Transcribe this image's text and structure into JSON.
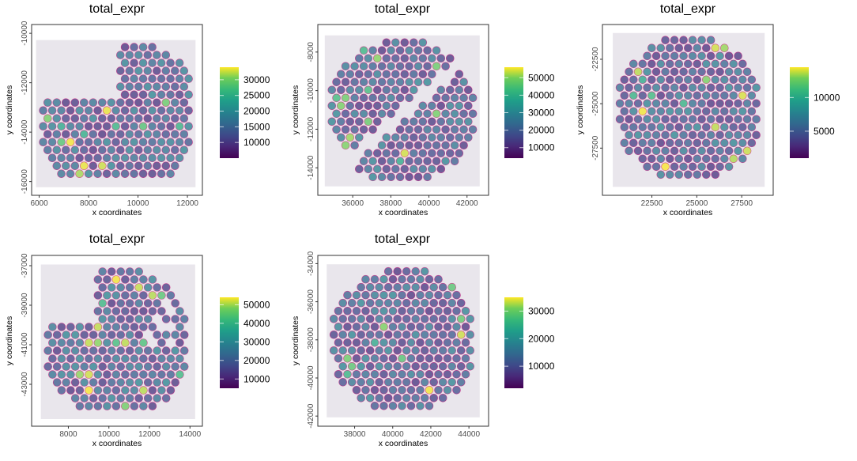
{
  "figure": {
    "description": "Spatial transcriptomics spot plots (Giotto-style) of total_expr overlaid on H&E tissue images, 5 samples",
    "background": "#ffffff",
    "panel_bg": "#e9e6ec",
    "tissue_color": "#d0157a"
  },
  "chart_data": [
    {
      "type": "scatter",
      "title": "total_expr",
      "xlabel": "x coordinates",
      "ylabel": "y coordinates",
      "xlim": [
        5950,
        12350
      ],
      "ylim": [
        -16300,
        -9900
      ],
      "xticks": [
        6000,
        8000,
        10000,
        12000
      ],
      "yticks": [
        -16000,
        -14000,
        -12000,
        -10000
      ],
      "xtick_labels": [
        "6000",
        "8000",
        "10000",
        "12000"
      ],
      "ytick_labels": [
        "-16000",
        "-14000",
        "-12000",
        "-10000"
      ],
      "color_scale": "viridis",
      "legend": {
        "position": "right",
        "range": [
          5000,
          34000
        ],
        "breaks": [
          10000,
          15000,
          20000,
          25000,
          30000
        ],
        "labels": [
          "10000",
          "15000",
          "20000",
          "25000",
          "30000"
        ]
      },
      "grid": false,
      "tissue_shape": "irregular",
      "tissue_extent": {
        "x": [
          6000,
          12200
        ],
        "y": [
          -16100,
          -10400
        ]
      }
    },
    {
      "type": "scatter",
      "title": "total_expr",
      "xlabel": "x coordinates",
      "ylabel": "y coordinates",
      "xlim": [
        34500,
        42800
      ],
      "ylim": [
        -15100,
        -6900
      ],
      "xticks": [
        36000,
        38000,
        40000,
        42000
      ],
      "yticks": [
        -14000,
        -12000,
        -10000,
        -8000
      ],
      "xtick_labels": [
        "36000",
        "38000",
        "40000",
        "42000"
      ],
      "ytick_labels": [
        "-14000",
        "-12000",
        "-10000",
        "-8000"
      ],
      "color_scale": "viridis",
      "legend": {
        "position": "right",
        "range": [
          4000,
          56000
        ],
        "breaks": [
          10000,
          20000,
          30000,
          40000,
          50000
        ],
        "labels": [
          "10000",
          "20000",
          "30000",
          "40000",
          "50000"
        ]
      },
      "grid": false,
      "tissue_shape": "round-split",
      "tissue_extent": {
        "x": [
          34700,
          42500
        ],
        "y": [
          -14800,
          -7300
        ]
      }
    },
    {
      "type": "scatter",
      "title": "total_expr",
      "xlabel": "x coordinates",
      "ylabel": "y coordinates",
      "xlim": [
        20100,
        28900
      ],
      "ylim": [
        -29800,
        -20900
      ],
      "xticks": [
        22500,
        25000,
        27500
      ],
      "yticks": [
        -27500,
        -25000,
        -22500
      ],
      "xtick_labels": [
        "22500",
        "25000",
        "27500"
      ],
      "ytick_labels": [
        "-27500",
        "-25000",
        "-22500"
      ],
      "color_scale": "viridis",
      "legend": {
        "position": "right",
        "range": [
          1000,
          14500
        ],
        "breaks": [
          5000,
          10000
        ],
        "labels": [
          "5000",
          "10000"
        ]
      },
      "grid": false,
      "tissue_shape": "round",
      "tissue_extent": {
        "x": [
          20500,
          28600
        ],
        "y": [
          -29500,
          -21200
        ]
      }
    },
    {
      "type": "scatter",
      "title": "total_expr",
      "xlabel": "x coordinates",
      "ylabel": "y coordinates",
      "xlim": [
        6500,
        14300
      ],
      "ylim": [
        -44800,
        -36800
      ],
      "xticks": [
        8000,
        10000,
        12000,
        14000
      ],
      "yticks": [
        -43000,
        -41000,
        -39000,
        -37000
      ],
      "xtick_labels": [
        "8000",
        "10000",
        "12000",
        "14000"
      ],
      "ytick_labels": [
        "-43000",
        "-41000",
        "-39000",
        "-37000"
      ],
      "color_scale": "viridis",
      "legend": {
        "position": "right",
        "range": [
          5000,
          54000
        ],
        "breaks": [
          10000,
          20000,
          30000,
          40000,
          50000
        ],
        "labels": [
          "10000",
          "20000",
          "30000",
          "40000",
          "50000"
        ]
      },
      "grid": false,
      "tissue_shape": "irregular",
      "tissue_extent": {
        "x": [
          6800,
          14100
        ],
        "y": [
          -44600,
          -37100
        ]
      }
    },
    {
      "type": "scatter",
      "title": "total_expr",
      "xlabel": "x coordinates",
      "ylabel": "y coordinates",
      "xlim": [
        36400,
        44700
      ],
      "ylim": [
        -42200,
        -33900
      ],
      "xticks": [
        38000,
        40000,
        42000,
        44000
      ],
      "yticks": [
        -42000,
        -40000,
        -38000,
        -36000,
        -34000
      ],
      "xtick_labels": [
        "38000",
        "40000",
        "42000",
        "44000"
      ],
      "ytick_labels": [
        "-42000",
        "-40000",
        "-38000",
        "-36000",
        "-34000"
      ],
      "color_scale": "viridis",
      "legend": {
        "position": "right",
        "range": [
          2000,
          35000
        ],
        "breaks": [
          10000,
          20000,
          30000
        ],
        "labels": [
          "10000",
          "20000",
          "30000"
        ]
      },
      "grid": false,
      "tissue_shape": "round",
      "tissue_extent": {
        "x": [
          36700,
          44400
        ],
        "y": [
          -41900,
          -34200
        ]
      }
    }
  ]
}
